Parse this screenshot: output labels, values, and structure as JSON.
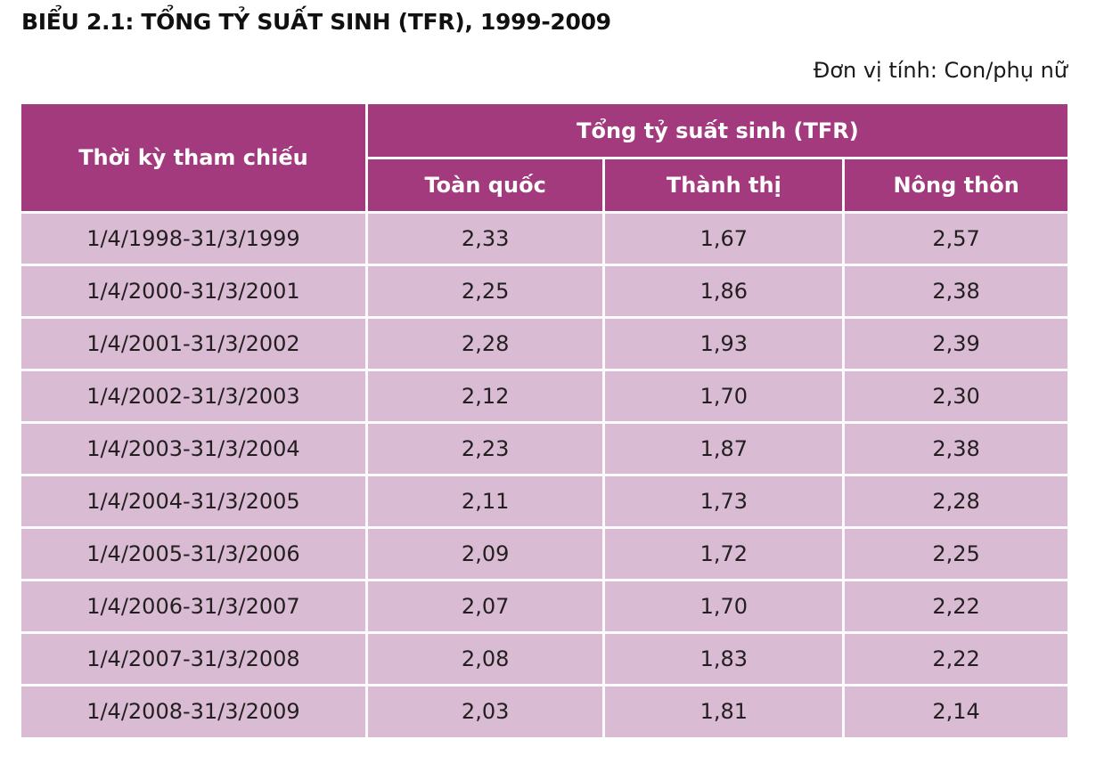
{
  "page": {
    "title": "BIỂU 2.1: TỔNG TỶ SUẤT SINH (TFR), 1999-2009",
    "unit_label": "Đơn vị tính: Con/phụ nữ"
  },
  "colors": {
    "header_bg": "#a23a7d",
    "row_bg": "#d9bcd3",
    "divider": "#fdfbfd",
    "header_text": "#ffffff",
    "body_text": "#231f20"
  },
  "table": {
    "period_header": "Thời kỳ tham chiếu",
    "group_header": "Tổng tỷ suất sinh (TFR)",
    "sub_headers": {
      "total": "Toàn quốc",
      "urban": "Thành thị",
      "rural": "Nông thôn"
    },
    "rows": [
      {
        "period": "1/4/1998-31/3/1999",
        "total": "2,33",
        "urban": "1,67",
        "rural": "2,57"
      },
      {
        "period": "1/4/2000-31/3/2001",
        "total": "2,25",
        "urban": "1,86",
        "rural": "2,38"
      },
      {
        "period": "1/4/2001-31/3/2002",
        "total": "2,28",
        "urban": "1,93",
        "rural": "2,39"
      },
      {
        "period": "1/4/2002-31/3/2003",
        "total": "2,12",
        "urban": "1,70",
        "rural": "2,30"
      },
      {
        "period": "1/4/2003-31/3/2004",
        "total": "2,23",
        "urban": "1,87",
        "rural": "2,38"
      },
      {
        "period": "1/4/2004-31/3/2005",
        "total": "2,11",
        "urban": "1,73",
        "rural": "2,28"
      },
      {
        "period": "1/4/2005-31/3/2006",
        "total": "2,09",
        "urban": "1,72",
        "rural": "2,25"
      },
      {
        "period": "1/4/2006-31/3/2007",
        "total": "2,07",
        "urban": "1,70",
        "rural": "2,22"
      },
      {
        "period": "1/4/2007-31/3/2008",
        "total": "2,08",
        "urban": "1,83",
        "rural": "2,22"
      },
      {
        "period": "1/4/2008-31/3/2009",
        "total": "2,03",
        "urban": "1,81",
        "rural": "2,14"
      }
    ]
  }
}
